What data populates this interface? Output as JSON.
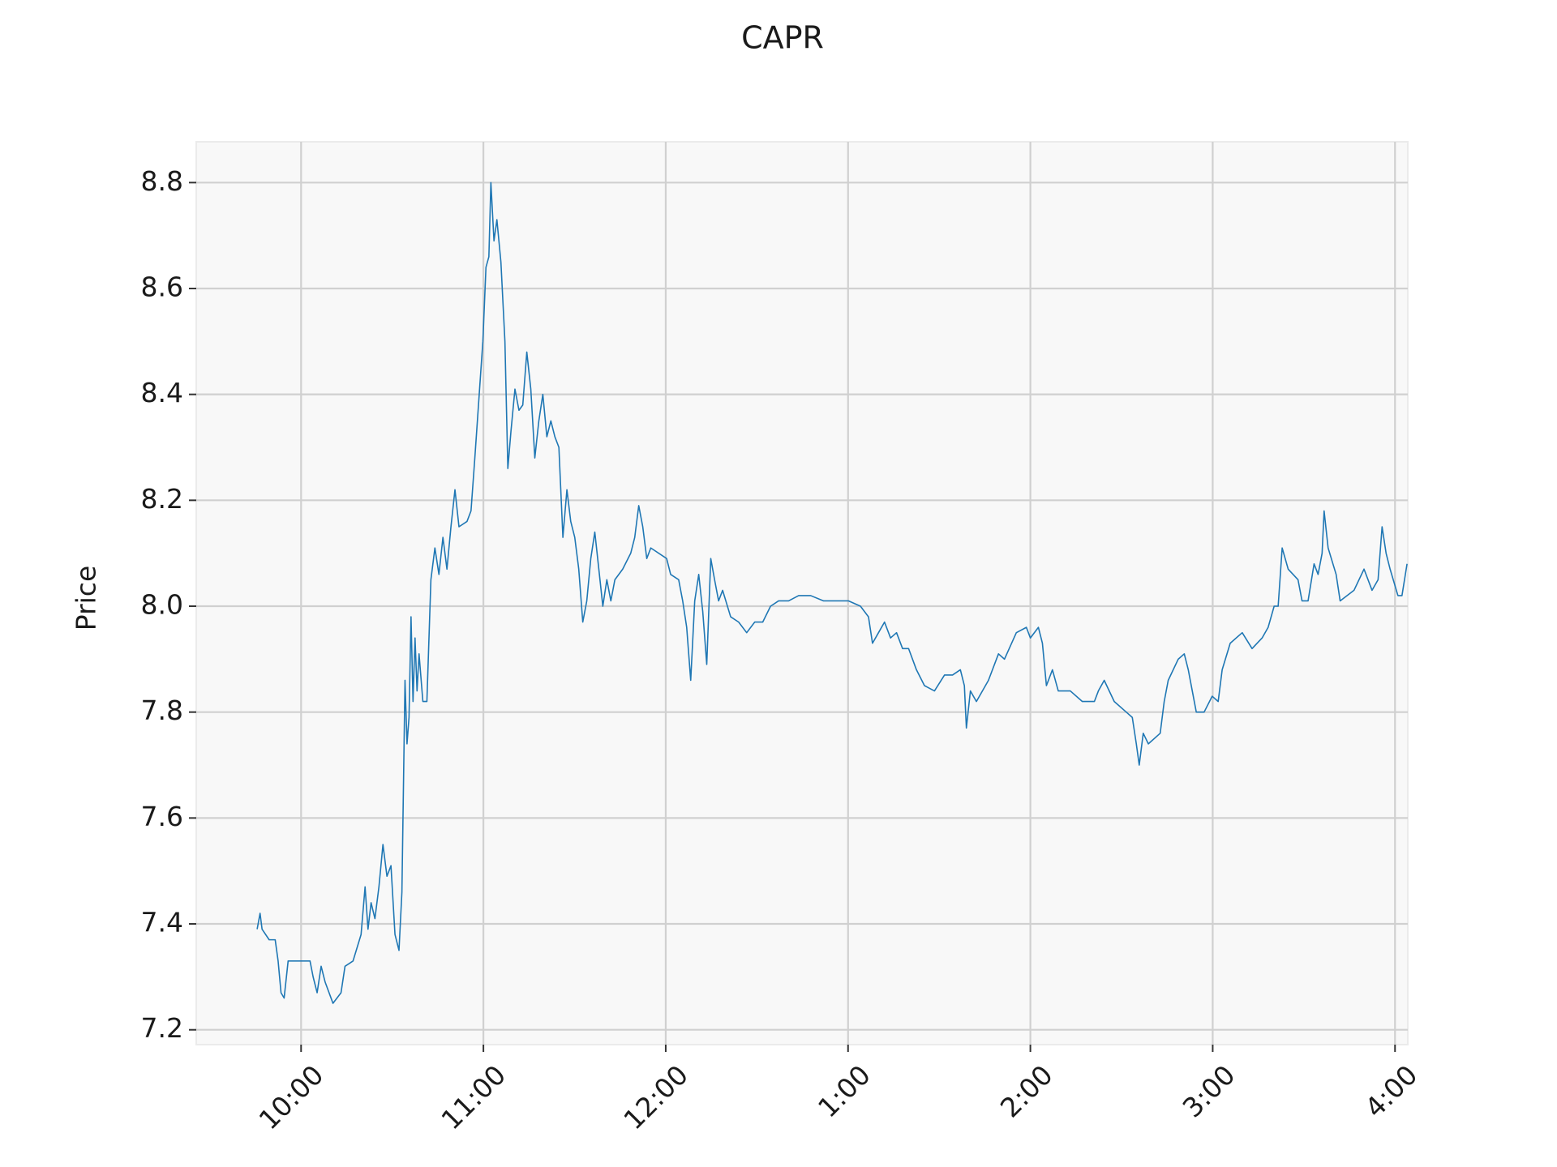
{
  "chart_data": {
    "type": "line",
    "title": "CAPR",
    "y_label": "Price",
    "xlim": [
      9.425,
      16.07
    ],
    "ylim": [
      7.172,
      8.877
    ],
    "xticks": [
      {
        "value": 10,
        "label": "10:00"
      },
      {
        "value": 11,
        "label": "11:00"
      },
      {
        "value": 12,
        "label": "12:00"
      },
      {
        "value": 13,
        "label": "1:00"
      },
      {
        "value": 14,
        "label": "2:00"
      },
      {
        "value": 15,
        "label": "3:00"
      },
      {
        "value": 16,
        "label": "4:00"
      }
    ],
    "yticks": [
      7.2,
      7.4,
      7.6,
      7.8,
      {
        "value": 8,
        "label": "8.0"
      },
      8.2,
      8.4,
      8.6,
      8.8
    ],
    "grid": true,
    "series": [
      {
        "color": "#1f77b4",
        "x": [
          9.759,
          9.775,
          9.786,
          9.825,
          9.858,
          9.874,
          9.89,
          9.907,
          9.929,
          10.049,
          10.066,
          10.088,
          10.11,
          10.132,
          10.175,
          10.219,
          10.241,
          10.285,
          10.329,
          10.351,
          10.367,
          10.384,
          10.405,
          10.427,
          10.449,
          10.471,
          10.493,
          10.515,
          10.537,
          10.553,
          10.57,
          10.581,
          10.592,
          10.603,
          10.614,
          10.625,
          10.636,
          10.647,
          10.668,
          10.69,
          10.712,
          10.734,
          10.756,
          10.778,
          10.8,
          10.822,
          10.844,
          10.866,
          10.91,
          10.932,
          10.953,
          10.975,
          10.997,
          11.014,
          11.03,
          11.041,
          11.058,
          11.074,
          11.096,
          11.118,
          11.134,
          11.151,
          11.173,
          11.195,
          11.216,
          11.238,
          11.26,
          11.282,
          11.304,
          11.326,
          11.348,
          11.37,
          11.392,
          11.414,
          11.436,
          11.458,
          11.479,
          11.501,
          11.523,
          11.545,
          11.567,
          11.589,
          11.611,
          11.633,
          11.655,
          11.677,
          11.699,
          11.721,
          11.764,
          11.808,
          11.83,
          11.852,
          11.874,
          11.896,
          11.918,
          12.005,
          12.027,
          12.071,
          12.093,
          12.115,
          12.137,
          12.159,
          12.181,
          12.203,
          12.225,
          12.247,
          12.268,
          12.29,
          12.312,
          12.356,
          12.4,
          12.444,
          12.488,
          12.532,
          12.575,
          12.619,
          12.674,
          12.729,
          12.795,
          12.866,
          12.937,
          13.003,
          13.068,
          13.112,
          13.134,
          13.167,
          13.2,
          13.233,
          13.266,
          13.299,
          13.332,
          13.375,
          13.419,
          13.474,
          13.529,
          13.573,
          13.616,
          13.638,
          13.649,
          13.671,
          13.704,
          13.77,
          13.825,
          13.858,
          13.923,
          13.978,
          14.0,
          14.044,
          14.066,
          14.088,
          14.121,
          14.153,
          14.219,
          14.285,
          14.351,
          14.373,
          14.405,
          14.46,
          14.526,
          14.559,
          14.581,
          14.597,
          14.619,
          14.647,
          14.712,
          14.734,
          14.756,
          14.811,
          14.844,
          14.866,
          14.888,
          14.91,
          14.953,
          14.997,
          15.03,
          15.052,
          15.096,
          15.162,
          15.216,
          15.271,
          15.304,
          15.337,
          15.359,
          15.381,
          15.414,
          15.468,
          15.49,
          15.523,
          15.556,
          15.578,
          15.6,
          15.611,
          15.633,
          15.677,
          15.699,
          15.775,
          15.83,
          15.874,
          15.907,
          15.929,
          15.951,
          15.973,
          16.016,
          16.038,
          16.066
        ],
        "values": [
          7.39,
          7.42,
          7.39,
          7.37,
          7.37,
          7.33,
          7.27,
          7.26,
          7.33,
          7.33,
          7.3,
          7.27,
          7.32,
          7.29,
          7.25,
          7.27,
          7.32,
          7.33,
          7.38,
          7.47,
          7.39,
          7.44,
          7.41,
          7.47,
          7.55,
          7.49,
          7.51,
          7.38,
          7.35,
          7.46,
          7.86,
          7.74,
          7.79,
          7.98,
          7.82,
          7.94,
          7.84,
          7.91,
          7.82,
          7.82,
          8.05,
          8.11,
          8.06,
          8.13,
          8.07,
          8.15,
          8.22,
          8.15,
          8.16,
          8.18,
          8.28,
          8.39,
          8.5,
          8.64,
          8.66,
          8.8,
          8.69,
          8.73,
          8.65,
          8.5,
          8.26,
          8.33,
          8.41,
          8.37,
          8.38,
          8.48,
          8.41,
          8.28,
          8.35,
          8.4,
          8.32,
          8.35,
          8.32,
          8.3,
          8.13,
          8.22,
          8.16,
          8.13,
          8.07,
          7.97,
          8.01,
          8.09,
          8.14,
          8.07,
          8.0,
          8.05,
          8.01,
          8.05,
          8.07,
          8.1,
          8.13,
          8.19,
          8.15,
          8.09,
          8.11,
          8.09,
          8.06,
          8.05,
          8.01,
          7.96,
          7.86,
          8.01,
          8.06,
          7.99,
          7.89,
          8.09,
          8.05,
          8.01,
          8.03,
          7.98,
          7.97,
          7.95,
          7.97,
          7.97,
          8.0,
          8.01,
          8.01,
          8.02,
          8.02,
          8.01,
          8.01,
          8.01,
          8.0,
          7.98,
          7.93,
          7.95,
          7.97,
          7.94,
          7.95,
          7.92,
          7.92,
          7.88,
          7.85,
          7.84,
          7.87,
          7.87,
          7.88,
          7.85,
          7.77,
          7.84,
          7.82,
          7.86,
          7.91,
          7.9,
          7.95,
          7.96,
          7.94,
          7.96,
          7.93,
          7.85,
          7.88,
          7.84,
          7.84,
          7.82,
          7.82,
          7.84,
          7.86,
          7.82,
          7.8,
          7.79,
          7.74,
          7.7,
          7.76,
          7.74,
          7.76,
          7.82,
          7.86,
          7.9,
          7.91,
          7.88,
          7.84,
          7.8,
          7.8,
          7.83,
          7.82,
          7.88,
          7.93,
          7.95,
          7.92,
          7.94,
          7.96,
          8.0,
          8.0,
          8.11,
          8.07,
          8.05,
          8.01,
          8.01,
          8.08,
          8.06,
          8.1,
          8.18,
          8.11,
          8.06,
          8.01,
          8.03,
          8.07,
          8.03,
          8.05,
          8.15,
          8.1,
          8.07,
          8.02,
          8.02,
          8.08
        ]
      }
    ]
  }
}
